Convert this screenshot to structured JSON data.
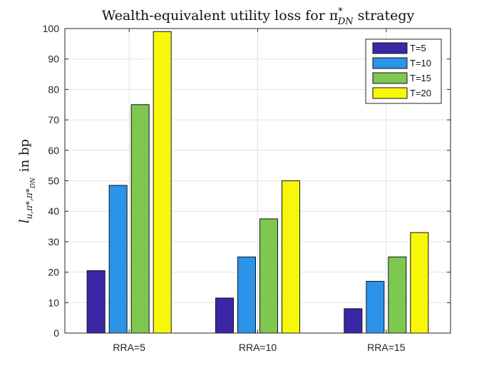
{
  "chart_data": {
    "type": "bar",
    "title": {
      "main": "Wealth-equivalent utility loss for π",
      "sup": "*",
      "sub": "DN",
      "tail": " strategy"
    },
    "ylabel": {
      "base": "l",
      "sub": "u,π*,π*",
      "subsub": "DN",
      "tail": "in bp"
    },
    "xlabel": "",
    "categories": [
      "RRA=5",
      "RRA=10",
      "RRA=15"
    ],
    "series": [
      {
        "name": "T=5",
        "values": [
          20.5,
          11.5,
          8
        ],
        "color": "#3a27a8"
      },
      {
        "name": "T=10",
        "values": [
          48.5,
          25,
          17
        ],
        "color": "#2b93e8"
      },
      {
        "name": "T=15",
        "values": [
          75,
          37.5,
          25
        ],
        "color": "#7ec850"
      },
      {
        "name": "T=20",
        "values": [
          99,
          50,
          33
        ],
        "color": "#f7f70a"
      }
    ],
    "ylim": [
      0,
      100
    ],
    "yticks": [
      0,
      10,
      20,
      30,
      40,
      50,
      60,
      70,
      80,
      90,
      100
    ],
    "grid": true,
    "legend_position": "top-right"
  }
}
